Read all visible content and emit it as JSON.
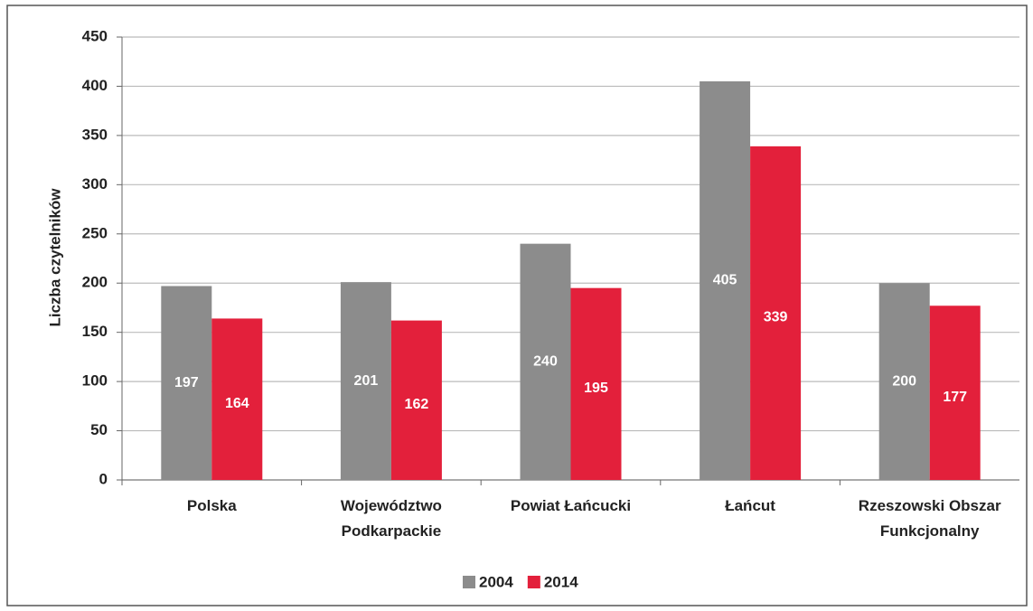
{
  "chart_data": {
    "type": "bar",
    "y_label": "Liczba czytelników",
    "categories": [
      "Polska",
      "Województwo Podkarpackie",
      "Powiat Łańcucki",
      "Łańcut",
      "Rzeszowski Obszar Funkcjonalny"
    ],
    "series": [
      {
        "name": "2004",
        "color": "#8c8c8c",
        "values": [
          197,
          201,
          240,
          405,
          200
        ]
      },
      {
        "name": "2014",
        "color": "#e3203b",
        "values": [
          164,
          162,
          195,
          339,
          177
        ]
      }
    ],
    "ylim": [
      0,
      450
    ],
    "yticks": [
      0,
      50,
      100,
      150,
      200,
      250,
      300,
      350,
      400,
      450
    ],
    "grid": true,
    "legend": "bottom"
  }
}
